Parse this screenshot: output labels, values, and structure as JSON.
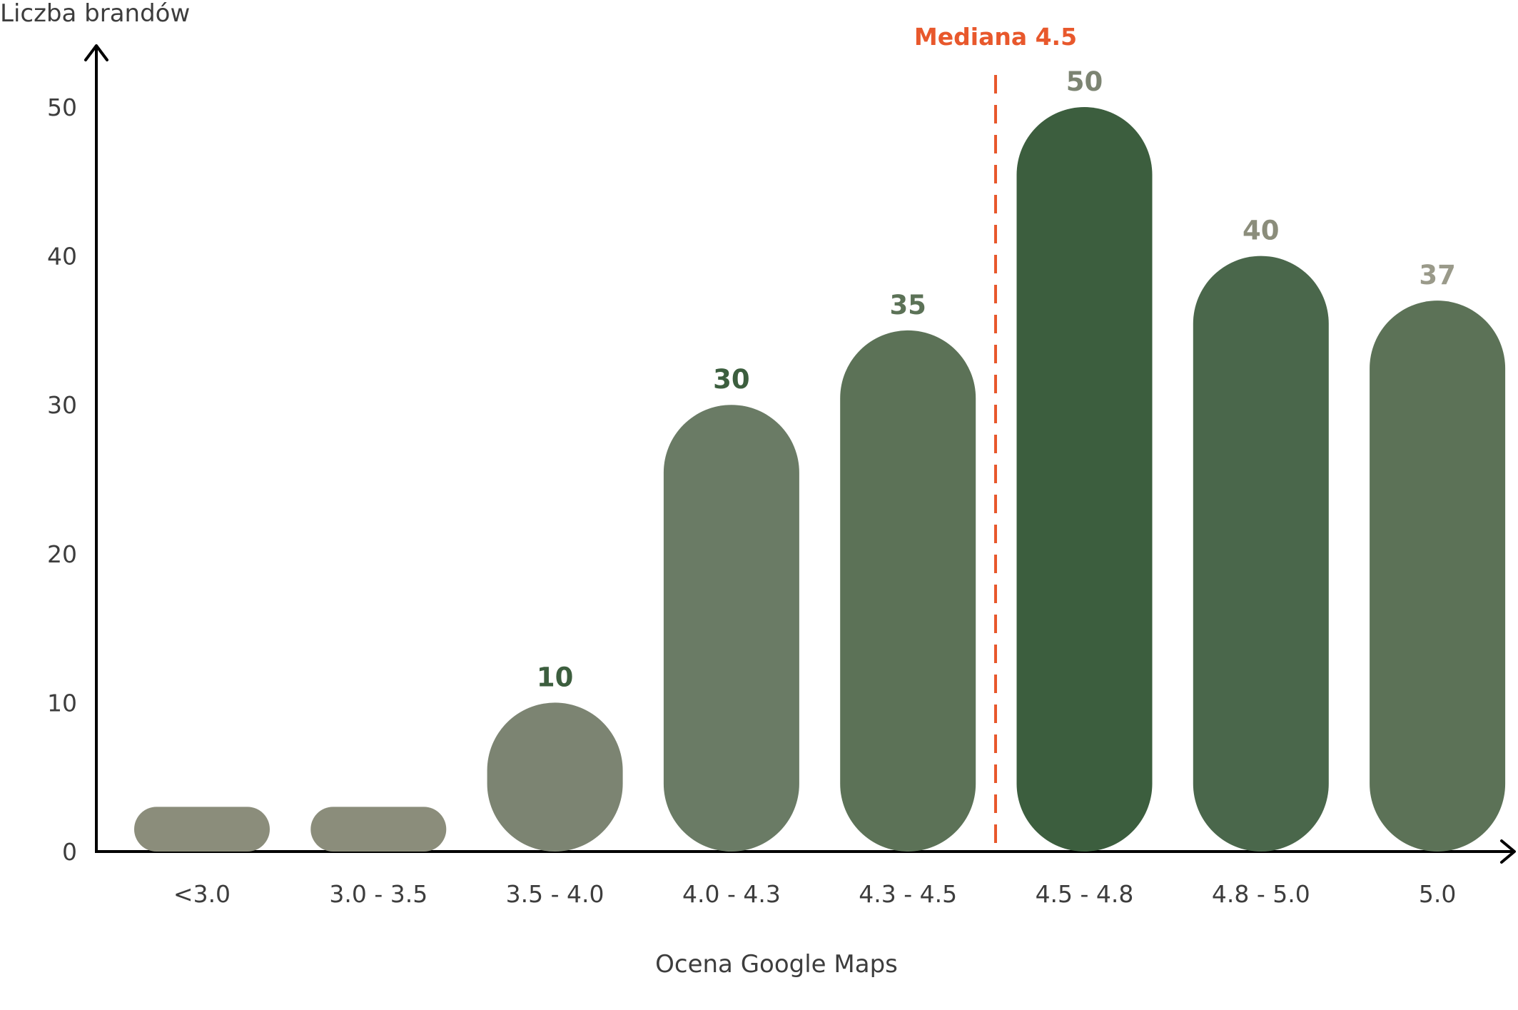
{
  "chart_data": {
    "type": "bar",
    "title": "",
    "xlabel": "Ocena Google Maps",
    "ylabel": "Liczba brandów",
    "ylim": [
      0,
      50
    ],
    "yticks": [
      "0",
      "10",
      "20",
      "30",
      "40",
      "50"
    ],
    "categories": [
      "<3.0",
      "3.0 - 3.5",
      "3.5 - 4.0",
      "4.0 - 4.3",
      "4.3 - 4.5",
      "4.5 - 4.8",
      "4.8 - 5.0",
      "5.0"
    ],
    "values": [
      3,
      3,
      10,
      30,
      35,
      50,
      40,
      37
    ],
    "data_labels": [
      "",
      "",
      "10",
      "30",
      "35",
      "50",
      "40",
      "37"
    ],
    "bar_colors": [
      "#8b8d7b",
      "#8b8d7b",
      "#7c8472",
      "#6a7b65",
      "#5c7257",
      "#3c5e3e",
      "#4a674b",
      "#5c7257"
    ],
    "label_colors": [
      "#8b8d7b",
      "#8b8d7b",
      "#3c5e3e",
      "#3c5e3e",
      "#5c7257",
      "#7c8472",
      "#8b8d7b",
      "#9a9a8a"
    ],
    "median": {
      "label": "Mediana 4.5",
      "color": "#e8582c"
    },
    "grid": false,
    "legend": "none"
  }
}
